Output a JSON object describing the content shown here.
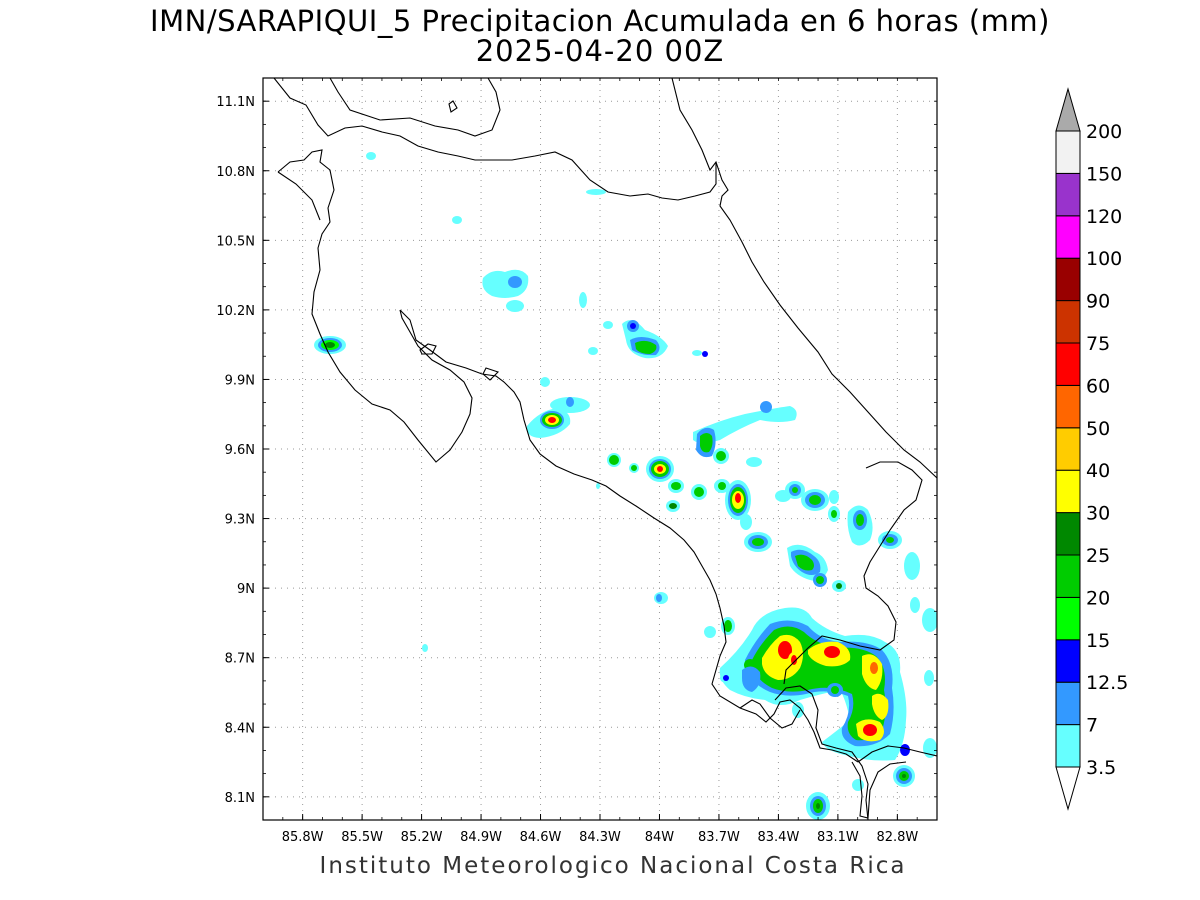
{
  "title": {
    "line1": "IMN/SARAPIQUI_5 Precipitacion Acumulada en 6 horas (mm)",
    "line2": "2025-04-20 00Z"
  },
  "footer": "Instituto Meteorologico Nacional Costa Rica",
  "map": {
    "lon_range": [
      -86.0,
      -82.6
    ],
    "lat_range": [
      8.0,
      11.2
    ],
    "lon_ticks": [
      {
        "value": -85.8,
        "label": "85.8W"
      },
      {
        "value": -85.5,
        "label": "85.5W"
      },
      {
        "value": -85.2,
        "label": "85.2W"
      },
      {
        "value": -84.9,
        "label": "84.9W"
      },
      {
        "value": -84.6,
        "label": "84.6W"
      },
      {
        "value": -84.3,
        "label": "84.3W"
      },
      {
        "value": -84.0,
        "label": "84W"
      },
      {
        "value": -83.7,
        "label": "83.7W"
      },
      {
        "value": -83.4,
        "label": "83.4W"
      },
      {
        "value": -83.1,
        "label": "83.1W"
      },
      {
        "value": -82.8,
        "label": "82.8W"
      }
    ],
    "lat_ticks": [
      {
        "value": 11.1,
        "label": "11.1N"
      },
      {
        "value": 10.8,
        "label": "10.8N"
      },
      {
        "value": 10.5,
        "label": "10.5N"
      },
      {
        "value": 10.2,
        "label": "10.2N"
      },
      {
        "value": 9.9,
        "label": "9.9N"
      },
      {
        "value": 9.6,
        "label": "9.6N"
      },
      {
        "value": 9.3,
        "label": "9.3N"
      },
      {
        "value": 9.0,
        "label": "9N"
      },
      {
        "value": 8.7,
        "label": "8.7N"
      },
      {
        "value": 8.4,
        "label": "8.4N"
      },
      {
        "value": 8.1,
        "label": "8.1N"
      }
    ],
    "grid": "dotted"
  },
  "colorbar": {
    "levels": [
      "3.5",
      "7",
      "12.5",
      "15",
      "20",
      "25",
      "30",
      "40",
      "50",
      "60",
      "75",
      "90",
      "100",
      "120",
      "150",
      "200"
    ],
    "colors": [
      "#66ffff",
      "#3399ff",
      "#0000ff",
      "#00ff00",
      "#00cc00",
      "#008800",
      "#ffff00",
      "#ffcc00",
      "#ff6600",
      "#ff0000",
      "#cc3300",
      "#990000",
      "#ff00ff",
      "#9933cc",
      "#f2f2f2",
      "#aaaaaa"
    ]
  },
  "precip_cells": [
    {
      "lon": -85.74,
      "lat": 10.12,
      "max": 20
    },
    {
      "lon": -84.51,
      "lat": 9.78,
      "max": 60
    },
    {
      "lon": -84.04,
      "lat": 10.12,
      "max": 25
    },
    {
      "lon": -83.92,
      "lat": 9.55,
      "max": 60
    },
    {
      "lon": -83.54,
      "lat": 9.42,
      "max": 60
    },
    {
      "lon": -83.7,
      "lat": 9.72,
      "max": 25
    },
    {
      "lon": -83.29,
      "lat": 9.17,
      "max": 25
    },
    {
      "lon": -83.23,
      "lat": 8.79,
      "max": 75
    },
    {
      "lon": -83.18,
      "lat": 8.71,
      "max": 60
    },
    {
      "lon": -83.02,
      "lat": 8.76,
      "max": 75
    },
    {
      "lon": -82.84,
      "lat": 8.4,
      "max": 50
    },
    {
      "lon": -82.78,
      "lat": 8.51,
      "max": 40
    },
    {
      "lon": -82.72,
      "lat": 8.21,
      "max": 25
    },
    {
      "lon": -83.09,
      "lat": 8.06,
      "max": 25
    }
  ]
}
